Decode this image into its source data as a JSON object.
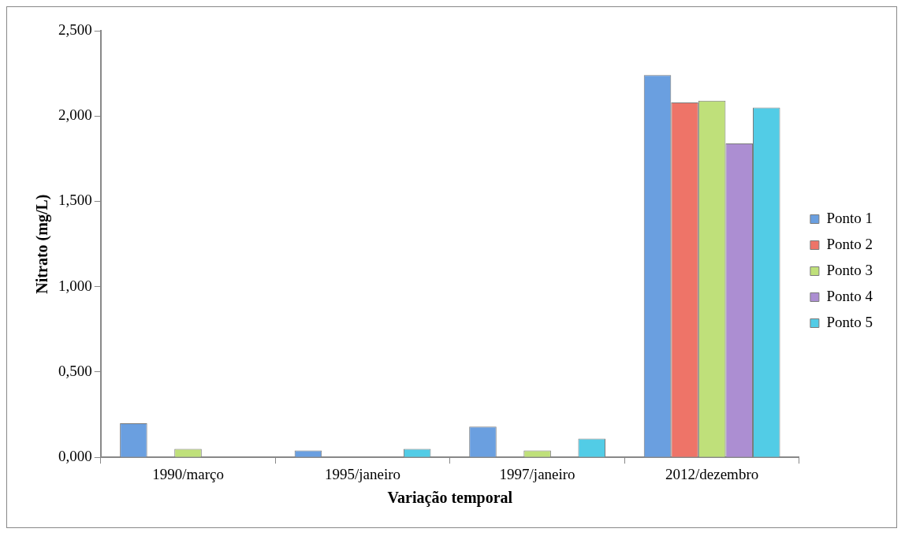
{
  "chart_data": {
    "type": "bar",
    "xlabel": "Variação temporal",
    "ylabel": "Nitrato (mg/L)",
    "categories": [
      "1990/março",
      "1995/janeiro",
      "1997/janeiro",
      "2012/dezembro"
    ],
    "series": [
      {
        "name": "Ponto 1",
        "color": "#6a9fe0",
        "values": [
          0.2,
          0.04,
          0.18,
          2.24
        ]
      },
      {
        "name": "Ponto 2",
        "color": "#ee7468",
        "values": [
          null,
          null,
          null,
          2.08
        ]
      },
      {
        "name": "Ponto 3",
        "color": "#bfe07a",
        "values": [
          0.05,
          null,
          0.04,
          2.09
        ]
      },
      {
        "name": "Ponto 4",
        "color": "#ac8ed2",
        "values": [
          null,
          null,
          null,
          1.84
        ]
      },
      {
        "name": "Ponto 5",
        "color": "#52cce6",
        "values": [
          null,
          0.05,
          0.11,
          2.05
        ]
      }
    ],
    "ylim": [
      0,
      2.5
    ],
    "yticks": [
      {
        "value": 0,
        "label": "0,000"
      },
      {
        "value": 0.5,
        "label": "0,500"
      },
      {
        "value": 1,
        "label": "1,000"
      },
      {
        "value": 1.5,
        "label": "1,500"
      },
      {
        "value": 2,
        "label": "2,000"
      },
      {
        "value": 2.5,
        "label": "2,500"
      }
    ],
    "grid": false,
    "legend": "right"
  }
}
